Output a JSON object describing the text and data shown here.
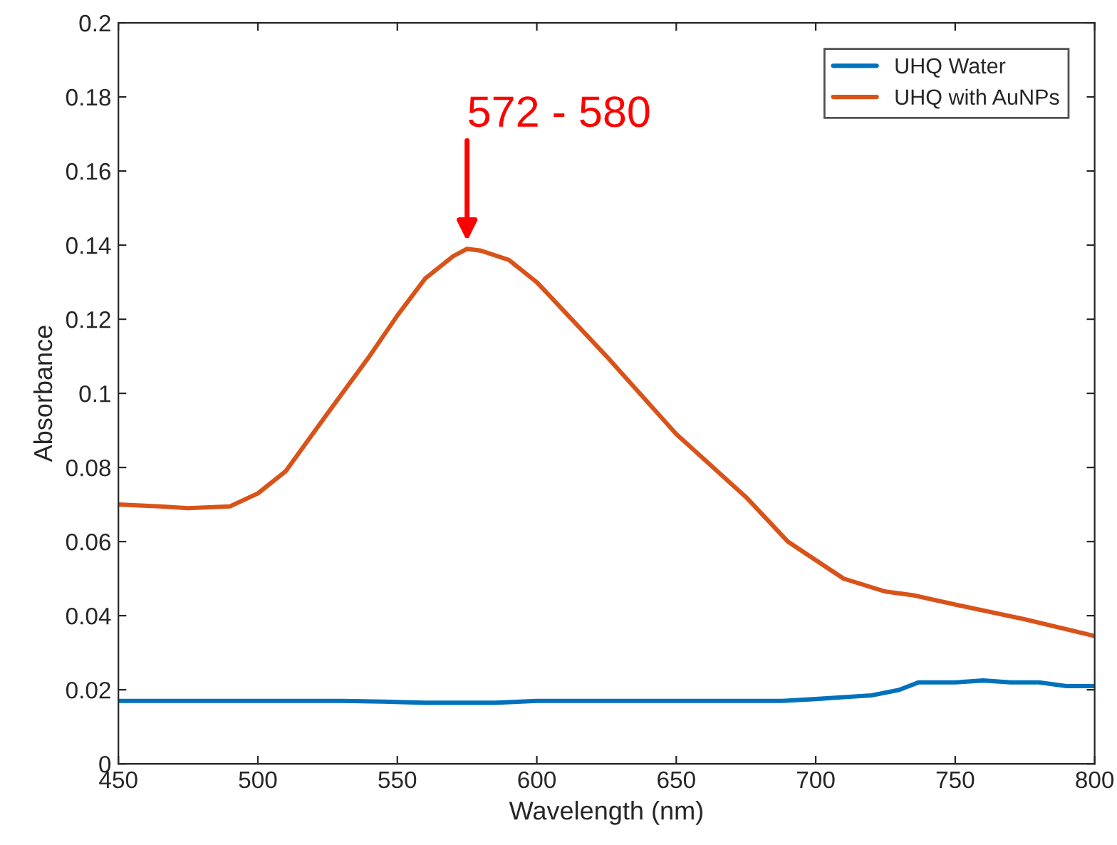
{
  "chart_data": {
    "type": "line",
    "xlabel": "Wavelength (nm)",
    "ylabel": "Absorbance",
    "xlim": [
      450,
      800
    ],
    "ylim": [
      0,
      0.2
    ],
    "xticks": [
      450,
      500,
      550,
      600,
      650,
      700,
      750,
      800
    ],
    "yticks": [
      0,
      0.02,
      0.04,
      0.06,
      0.08,
      0.1,
      0.12,
      0.14,
      0.16,
      0.18,
      0.2
    ],
    "grid": false,
    "legend": "top right",
    "line_style": "solid",
    "marker": "none",
    "series": [
      {
        "name": "UHQ Water",
        "color": "#0072bd",
        "x": [
          450,
          500,
          530,
          545,
          560,
          585,
          600,
          650,
          688,
          700,
          710,
          720,
          730,
          737,
          750,
          760,
          770,
          780,
          790,
          800
        ],
        "values": [
          0.017,
          0.017,
          0.017,
          0.0168,
          0.0165,
          0.0165,
          0.017,
          0.017,
          0.017,
          0.0175,
          0.018,
          0.0185,
          0.02,
          0.022,
          0.022,
          0.0225,
          0.022,
          0.022,
          0.021,
          0.021
        ]
      },
      {
        "name": "UHQ with AuNPs",
        "color": "#d95319",
        "x": [
          450,
          465,
          475,
          490,
          500,
          510,
          525,
          540,
          550,
          560,
          570,
          575,
          580,
          590,
          600,
          610,
          625,
          650,
          675,
          690,
          700,
          710,
          725,
          735,
          750,
          775,
          800
        ],
        "values": [
          0.07,
          0.0695,
          0.069,
          0.0695,
          0.073,
          0.079,
          0.0946,
          0.11,
          0.121,
          0.131,
          0.137,
          0.139,
          0.1385,
          0.136,
          0.13,
          0.122,
          0.11,
          0.089,
          0.072,
          0.06,
          0.055,
          0.05,
          0.0465,
          0.0455,
          0.043,
          0.039,
          0.0345
        ]
      }
    ],
    "annotations": [
      {
        "text": "572 - 580",
        "x": 575,
        "y": 0.14
      }
    ]
  }
}
